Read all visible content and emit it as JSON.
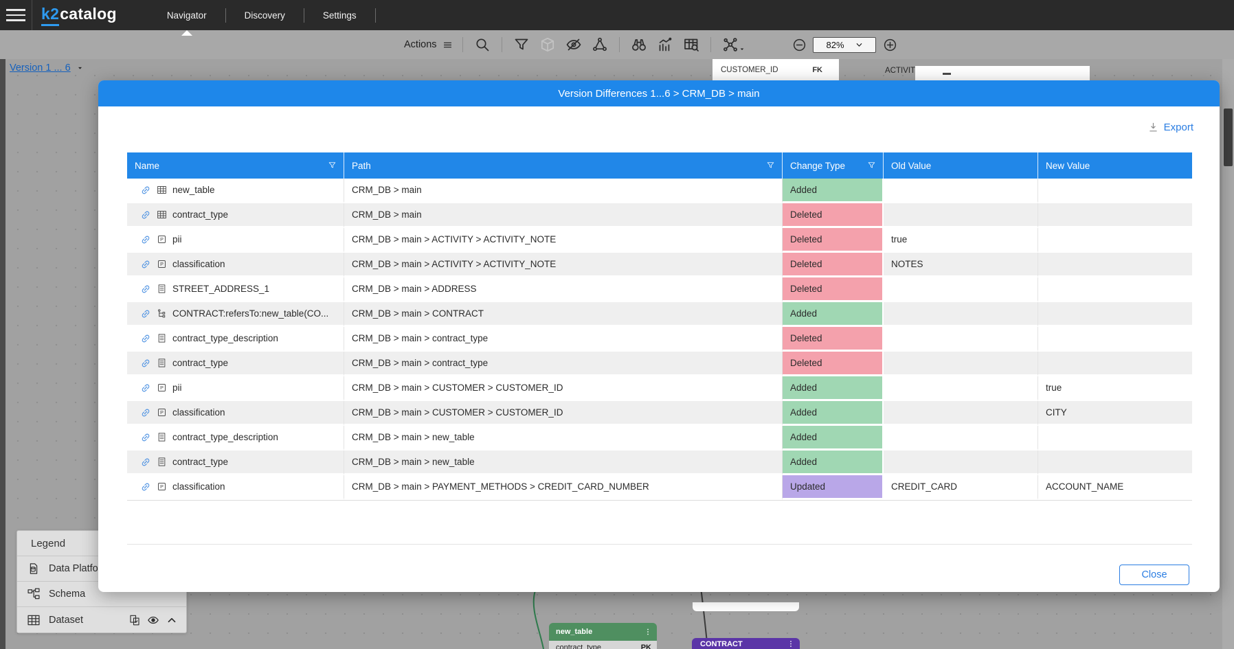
{
  "header": {
    "logo_k2": "k2",
    "logo_catalog": "catalog",
    "nav": [
      {
        "label": "Navigator",
        "active": true
      },
      {
        "label": "Discovery",
        "active": false
      },
      {
        "label": "Settings",
        "active": false
      }
    ]
  },
  "toolbar": {
    "actions_label": "Actions",
    "zoom_value": "82%",
    "buttons": [
      {
        "icon": "search-icon",
        "divider_before": true
      },
      {
        "icon": "filter-icon",
        "divider_before": true
      },
      {
        "icon": "package-icon",
        "disabled": true
      },
      {
        "icon": "hide-icon"
      },
      {
        "icon": "graph-icon"
      },
      {
        "icon": "binoculars-icon",
        "divider_before": true
      },
      {
        "icon": "chart-icon"
      },
      {
        "icon": "table-search-icon"
      },
      {
        "icon": "layout-icon",
        "divider_before": true,
        "caret": true
      }
    ]
  },
  "canvas": {
    "version_label": "Version 1 ... 6",
    "peek_customer_id": "CUSTOMER_ID",
    "peek_fk": "FK",
    "peek_activity": "ACTIVITY",
    "new_table_card": {
      "title": "new_table",
      "row_name": "contract_type",
      "row_key": "PK"
    },
    "contract_card": {
      "title": "CONTRACT"
    }
  },
  "legend": {
    "title": "Legend",
    "items": [
      {
        "icon": "data-platform-icon",
        "label": "Data Platform"
      },
      {
        "icon": "schema-icon",
        "label": "Schema"
      },
      {
        "icon": "dataset-icon",
        "label": "Dataset",
        "trailing": [
          "compare-doc-icon",
          "eye-icon",
          "chevron-up-icon"
        ]
      }
    ]
  },
  "modal": {
    "title": "Version Differences 1...6 > CRM_DB > main",
    "export_label": "Export",
    "close_label": "Close",
    "change_type_colors": {
      "Added": "#a0d7b3",
      "Deleted": "#f4a1ac",
      "Updated": "#b9a7e8"
    },
    "table": {
      "columns": [
        {
          "label": "Name",
          "filter": true
        },
        {
          "label": "Path",
          "filter": true
        },
        {
          "label": "Change Type",
          "filter": true
        },
        {
          "label": "Old Value",
          "filter": false
        },
        {
          "label": "New Value",
          "filter": false
        }
      ],
      "rows": [
        {
          "type": "dataset",
          "name": "new_table",
          "path": "CRM_DB > main",
          "change": "Added",
          "old": "",
          "new": ""
        },
        {
          "type": "dataset",
          "name": "contract_type",
          "path": "CRM_DB > main",
          "change": "Deleted",
          "old": "",
          "new": ""
        },
        {
          "type": "property",
          "name": "pii",
          "path": "CRM_DB > main > ACTIVITY > ACTIVITY_NOTE",
          "change": "Deleted",
          "old": "true",
          "new": ""
        },
        {
          "type": "property",
          "name": "classification",
          "path": "CRM_DB > main > ACTIVITY > ACTIVITY_NOTE",
          "change": "Deleted",
          "old": "NOTES",
          "new": ""
        },
        {
          "type": "column",
          "name": "STREET_ADDRESS_1",
          "path": "CRM_DB > main > ADDRESS",
          "change": "Deleted",
          "old": "",
          "new": ""
        },
        {
          "type": "relationship",
          "name": "CONTRACT:refersTo:new_table(CO...",
          "path": "CRM_DB > main > CONTRACT",
          "change": "Added",
          "old": "",
          "new": ""
        },
        {
          "type": "column",
          "name": "contract_type_description",
          "path": "CRM_DB > main > contract_type",
          "change": "Deleted",
          "old": "",
          "new": ""
        },
        {
          "type": "column",
          "name": "contract_type",
          "path": "CRM_DB > main > contract_type",
          "change": "Deleted",
          "old": "",
          "new": ""
        },
        {
          "type": "property",
          "name": "pii",
          "path": "CRM_DB > main > CUSTOMER > CUSTOMER_ID",
          "change": "Added",
          "old": "",
          "new": "true"
        },
        {
          "type": "property",
          "name": "classification",
          "path": "CRM_DB > main > CUSTOMER > CUSTOMER_ID",
          "change": "Added",
          "old": "",
          "new": "CITY"
        },
        {
          "type": "column",
          "name": "contract_type_description",
          "path": "CRM_DB > main > new_table",
          "change": "Added",
          "old": "",
          "new": ""
        },
        {
          "type": "column",
          "name": "contract_type",
          "path": "CRM_DB > main > new_table",
          "change": "Added",
          "old": "",
          "new": ""
        },
        {
          "type": "property",
          "name": "classification",
          "path": "CRM_DB > main > PAYMENT_METHODS > CREDIT_CARD_NUMBER",
          "change": "Updated",
          "old": "CREDIT_CARD",
          "new": "ACCOUNT_NAME"
        }
      ]
    }
  }
}
